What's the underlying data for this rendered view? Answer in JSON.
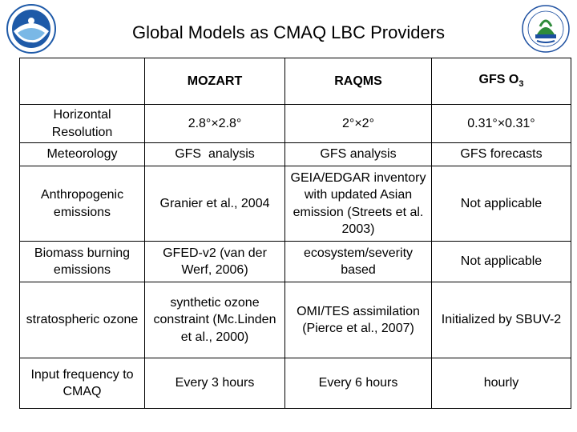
{
  "title": "Global Models as CMAQ LBC Providers",
  "colors": {
    "noaa_blue": "#1e5aa8",
    "noaa_light": "#7ab8e6",
    "epa_green": "#2e8b3a",
    "epa_blue": "#1c4fa0"
  },
  "icons": {
    "left_logo": "noaa-logo",
    "right_logo": "epa-logo"
  },
  "table": {
    "headers": [
      "",
      "MOZART",
      "RAQMS",
      "GFS O"
    ],
    "header_subscript": "3",
    "rows": [
      [
        "Horizontal Resolution",
        "2.8°×2.8°",
        "2°×2°",
        "0.31°×0.31°"
      ],
      [
        "Meteorology",
        "GFS  analysis",
        "GFS analysis",
        "GFS forecasts"
      ],
      [
        "Anthropogenic emissions",
        "Granier et al., 2004",
        "GEIA/EDGAR inventory with updated Asian emission (Streets et al. 2003)",
        "Not applicable"
      ],
      [
        "Biomass burning emissions",
        "GFED-v2 (van der Werf, 2006)",
        "ecosystem/severity based",
        "Not applicable"
      ],
      [
        "stratospheric ozone",
        "synthetic ozone constraint (Mc.Linden et al., 2000)",
        "OMI/TES assimilation (Pierce et al., 2007)",
        "Initialized by SBUV-2"
      ],
      [
        "Input frequency to CMAQ",
        "Every 3 hours",
        "Every 6 hours",
        "hourly"
      ]
    ]
  }
}
